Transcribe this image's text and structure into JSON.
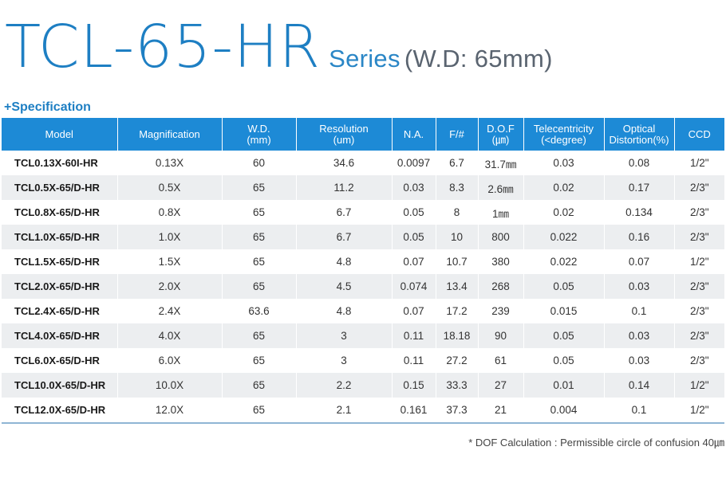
{
  "title": {
    "main": "TCL-65-HR",
    "series": "Series",
    "wd": "(W.D: 65mm)"
  },
  "section_label": "+Specification",
  "table": {
    "headers": [
      [
        "Model"
      ],
      [
        "Magnification"
      ],
      [
        "W.D.",
        "(mm)"
      ],
      [
        "Resolution",
        "(um)"
      ],
      [
        "N.A."
      ],
      [
        "F/#"
      ],
      [
        "D.O.F",
        "(㎛)"
      ],
      [
        "Telecentricity",
        "(<degree)"
      ],
      [
        "Optical",
        "Distortion(%)"
      ],
      [
        "CCD"
      ]
    ],
    "rows": [
      [
        "TCL0.13X-60I-HR",
        "0.13X",
        "60",
        "34.6",
        "0.0097",
        "6.7",
        "31.7㎜",
        "0.03",
        "0.08",
        "1/2\""
      ],
      [
        "TCL0.5X-65/D-HR",
        "0.5X",
        "65",
        "11.2",
        "0.03",
        "8.3",
        "2.6㎜",
        "0.02",
        "0.17",
        "2/3\""
      ],
      [
        "TCL0.8X-65/D-HR",
        "0.8X",
        "65",
        "6.7",
        "0.05",
        "8",
        "1㎜",
        "0.02",
        "0.134",
        "2/3\""
      ],
      [
        "TCL1.0X-65/D-HR",
        "1.0X",
        "65",
        "6.7",
        "0.05",
        "10",
        "800",
        "0.022",
        "0.16",
        "2/3\""
      ],
      [
        "TCL1.5X-65/D-HR",
        "1.5X",
        "65",
        "4.8",
        "0.07",
        "10.7",
        "380",
        "0.022",
        "0.07",
        "1/2\""
      ],
      [
        "TCL2.0X-65/D-HR",
        "2.0X",
        "65",
        "4.5",
        "0.074",
        "13.4",
        "268",
        "0.05",
        "0.03",
        "2/3\""
      ],
      [
        "TCL2.4X-65/D-HR",
        "2.4X",
        "63.6",
        "4.8",
        "0.07",
        "17.2",
        "239",
        "0.015",
        "0.1",
        "2/3\""
      ],
      [
        "TCL4.0X-65/D-HR",
        "4.0X",
        "65",
        "3",
        "0.11",
        "18.18",
        "90",
        "0.05",
        "0.03",
        "2/3\""
      ],
      [
        "TCL6.0X-65/D-HR",
        "6.0X",
        "65",
        "3",
        "0.11",
        "27.2",
        "61",
        "0.05",
        "0.03",
        "2/3\""
      ],
      [
        "TCL10.0X-65/D-HR",
        "10.0X",
        "65",
        "2.2",
        "0.15",
        "33.3",
        "27",
        "0.01",
        "0.14",
        "1/2\""
      ],
      [
        "TCL12.0X-65/D-HR",
        "12.0X",
        "65",
        "2.1",
        "0.161",
        "37.3",
        "21",
        "0.004",
        "0.1",
        "1/2\""
      ]
    ]
  },
  "footnote": "* DOF Calculation : Permissible circle of confusion 40㎛",
  "colors": {
    "accent": "#1e7fc3",
    "header_bg": "#1d8ad6",
    "row_alt": "#eceef0"
  }
}
